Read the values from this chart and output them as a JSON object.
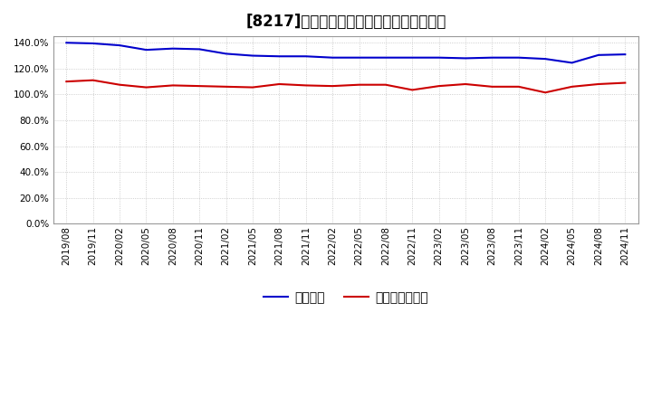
{
  "title": "[8217]　固定比率、固定長期適合率の推移",
  "x_labels": [
    "2019/08",
    "2019/11",
    "2020/02",
    "2020/05",
    "2020/08",
    "2020/11",
    "2021/02",
    "2021/05",
    "2021/08",
    "2021/11",
    "2022/02",
    "2022/05",
    "2022/08",
    "2022/11",
    "2023/02",
    "2023/05",
    "2023/08",
    "2023/11",
    "2024/02",
    "2024/05",
    "2024/08",
    "2024/11"
  ],
  "fixed_ratio": [
    140.0,
    139.5,
    138.0,
    134.5,
    135.5,
    135.0,
    131.5,
    130.0,
    129.5,
    129.5,
    128.5,
    128.5,
    128.5,
    128.5,
    128.5,
    128.0,
    128.5,
    128.5,
    127.5,
    124.5,
    130.5,
    131.0
  ],
  "fixed_lt_ratio": [
    110.0,
    111.0,
    107.5,
    105.5,
    107.0,
    106.5,
    106.0,
    105.5,
    108.0,
    107.0,
    106.5,
    107.5,
    107.5,
    103.5,
    106.5,
    108.0,
    106.0,
    106.0,
    101.5,
    106.0,
    108.0,
    109.0
  ],
  "line1_color": "#0000cc",
  "line2_color": "#cc0000",
  "line1_label": "固定比率",
  "line2_label": "固定長期適合率",
  "ylim": [
    0,
    145
  ],
  "yticks": [
    0,
    20,
    40,
    60,
    80,
    100,
    120,
    140
  ],
  "background_color": "#ffffff",
  "grid_color": "#aaaaaa",
  "title_fontsize": 12,
  "legend_fontsize": 10,
  "tick_fontsize": 7.5
}
